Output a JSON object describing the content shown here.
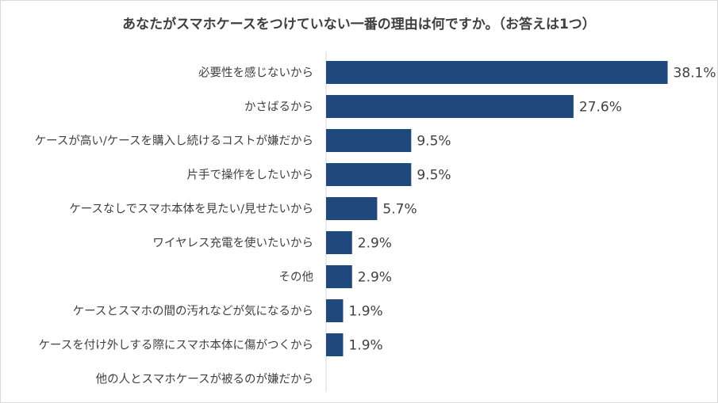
{
  "chart_data": {
    "type": "bar",
    "orientation": "horizontal",
    "title": "あなたがスマホケースをつけていない一番の理由は何ですか。（お答えは1つ）",
    "categories": [
      "必要性を感じないから",
      "かさばるから",
      "ケースが高い/ケースを購入し続けるコストが嫌だから",
      "片手で操作をしたいから",
      "ケースなしでスマホ本体を見たい/見せたいから",
      "ワイヤレス充電を使いたいから",
      "その他",
      "ケースとスマホの間の汚れなどが気になるから",
      "ケースを付け外しする際にスマホ本体に傷がつくから",
      "他の人とスマホケースが被るのが嫌だから"
    ],
    "values": [
      38.1,
      27.6,
      9.5,
      9.5,
      5.7,
      2.9,
      2.9,
      1.9,
      1.9,
      0
    ],
    "value_labels": [
      "38.1%",
      "27.6%",
      "9.5%",
      "9.5%",
      "5.7%",
      "2.9%",
      "2.9%",
      "1.9%",
      "1.9%",
      ""
    ],
    "unit": "%",
    "xlim": [
      0,
      40
    ],
    "bar_color": "#1f497d",
    "grid": false,
    "legend": "none"
  }
}
